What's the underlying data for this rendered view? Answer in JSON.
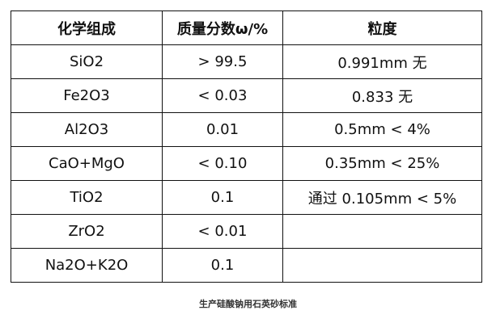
{
  "table": {
    "headers": [
      "化学组成",
      "质量分数ω/%",
      "粒度"
    ],
    "rows": [
      [
        "SiO2",
        "> 99.5",
        "0.991mm 无"
      ],
      [
        "Fe2O3",
        "< 0.03",
        "0.833 无"
      ],
      [
        "Al2O3",
        "0.01",
        "0.5mm < 4%"
      ],
      [
        "CaO+MgO",
        "< 0.10",
        "0.35mm < 25%"
      ],
      [
        "TiO2",
        "0.1",
        "通过 0.105mm < 5%"
      ],
      [
        "ZrO2",
        "< 0.01",
        ""
      ],
      [
        "Na2O+K2O",
        "0.1",
        ""
      ]
    ]
  },
  "caption": "生产硅酸钠用石英砂标准"
}
